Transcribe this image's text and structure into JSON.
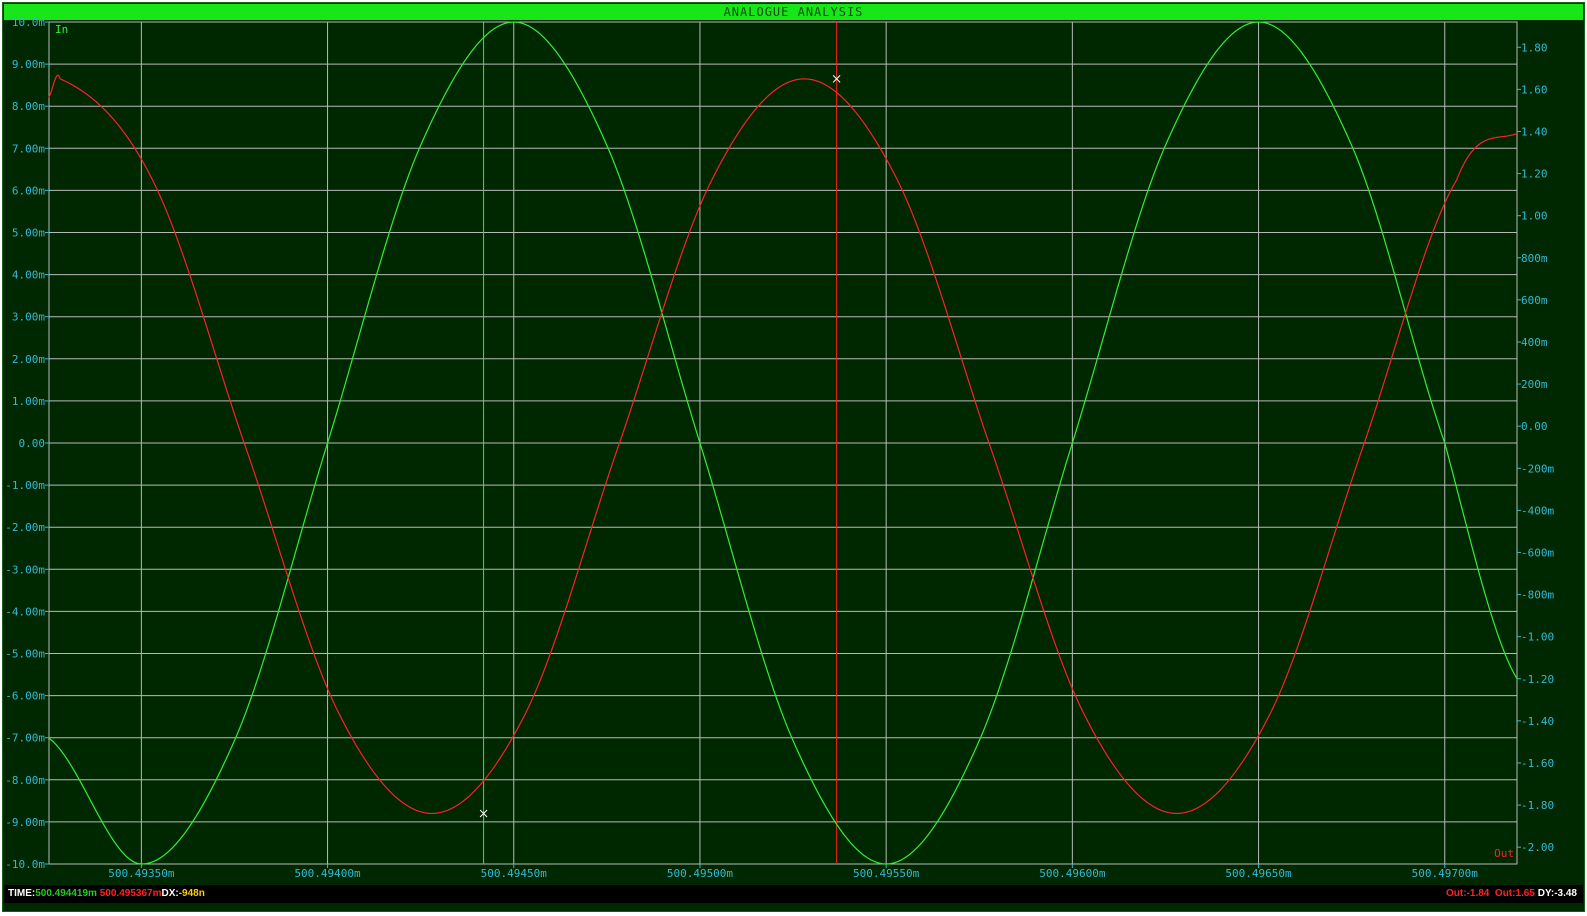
{
  "title": "ANALOGUE ANALYSIS",
  "colors": {
    "background": "#002800",
    "grid": "#b8b8b8",
    "axis_text": "#33b8d8",
    "trace_in": "#33ee33",
    "trace_out": "#ff2020",
    "title_bar": "#19e619"
  },
  "chart_data": {
    "type": "line",
    "grid": true,
    "x_ticks": [
      "500.49350m",
      "500.49400m",
      "500.49450m",
      "500.49500m",
      "500.49550m",
      "500.49600m",
      "500.49650m",
      "500.49700m"
    ],
    "x_tick_values": [
      500.4935,
      500.494,
      500.4945,
      500.495,
      500.4955,
      500.496,
      500.4965,
      500.497
    ],
    "xlim": [
      500.493252,
      500.497194
    ],
    "left_axis": {
      "ticks": [
        "10.0m",
        "9.00m",
        "8.00m",
        "7.00m",
        "6.00m",
        "5.00m",
        "4.00m",
        "3.00m",
        "2.00m",
        "1.00m",
        "0.00",
        "-1.00m",
        "-2.00m",
        "-3.00m",
        "-4.00m",
        "-5.00m",
        "-6.00m",
        "-7.00m",
        "-8.00m",
        "-9.00m",
        "-10.0m"
      ],
      "tick_values": [
        10,
        9,
        8,
        7,
        6,
        5,
        4,
        3,
        2,
        1,
        0,
        -1,
        -2,
        -3,
        -4,
        -5,
        -6,
        -7,
        -8,
        -9,
        -10
      ],
      "ylim": [
        -10,
        10
      ]
    },
    "right_axis": {
      "ticks": [
        "1.80",
        "1.60",
        "1.40",
        "1.20",
        "1.00",
        "800m",
        "600m",
        "400m",
        "200m",
        "0.00",
        "-200m",
        "-400m",
        "-600m",
        "-800m",
        "-1.00",
        "-1.20",
        "-1.40",
        "-1.60",
        "-1.80",
        "-2.00"
      ],
      "tick_values": [
        1.8,
        1.6,
        1.4,
        1.2,
        1.0,
        0.8,
        0.6,
        0.4,
        0.2,
        0,
        -0.2,
        -0.4,
        -0.6,
        -0.8,
        -1.0,
        -1.2,
        -1.4,
        -1.6,
        -1.8,
        -2.0
      ],
      "ylim": [
        -2.08,
        1.92
      ]
    },
    "series": [
      {
        "name": "In",
        "axis": "left",
        "color": "#33ee33",
        "x": [
          500.49325,
          500.4935,
          500.49375,
          500.494,
          500.49425,
          500.4945,
          500.49475,
          500.495,
          500.49525,
          500.4955,
          500.49575,
          500.496,
          500.49625,
          500.4965,
          500.49675,
          500.497,
          500.497194
        ],
        "y": [
          -7.0,
          -10.0,
          -7.07,
          0.0,
          7.07,
          10.0,
          7.07,
          0.0,
          -7.07,
          -10.0,
          -7.07,
          0.0,
          7.07,
          10.0,
          7.07,
          0.0,
          -5.6
        ]
      },
      {
        "name": "Out",
        "axis": "right",
        "color": "#ff2020",
        "x": [
          500.49325,
          500.493282,
          500.49353,
          500.49378,
          500.494032,
          500.49428,
          500.49453,
          500.49478,
          500.495032,
          500.49528,
          500.49553,
          500.49578,
          500.496032,
          500.49628,
          500.49653,
          500.49678,
          500.497032,
          500.497194
        ],
        "y": [
          1.56,
          1.65,
          1.17,
          -0.1,
          -1.37,
          -1.84,
          -1.37,
          -0.1,
          1.17,
          1.65,
          1.17,
          -0.1,
          -1.37,
          -1.84,
          -1.37,
          -0.1,
          1.17,
          1.39
        ]
      }
    ],
    "cursors": [
      {
        "color": "#33ee33",
        "x": 500.494419
      },
      {
        "color": "#ff2020",
        "x": 500.495367
      }
    ],
    "markers": [
      {
        "series": "Out",
        "x": 500.494419,
        "y": -1.84
      },
      {
        "series": "Out",
        "x": 500.495367,
        "y": 1.65
      }
    ]
  },
  "status": {
    "time_label": "TIME:",
    "time_green": "500.494419m",
    "time_red": "500.495367m",
    "dx_label": "DX:",
    "dx_value": "-948n",
    "out1": "Out:-1.84",
    "out2": "Out:1.65",
    "dy_label": "DY:",
    "dy_value": "-3.48"
  }
}
